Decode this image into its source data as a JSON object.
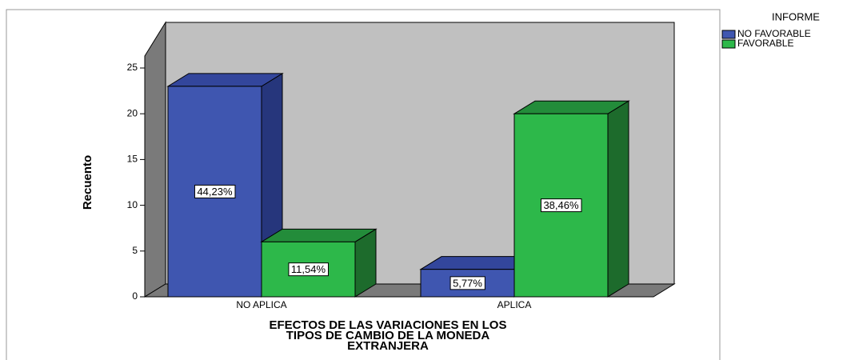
{
  "chart_data": {
    "type": "bar3d",
    "xlabel": [
      "EFECTOS DE LAS VARIACIONES EN LOS",
      "TIPOS DE CAMBIO DE LA MONEDA",
      "EXTRANJERA"
    ],
    "ylabel": "Recuento",
    "categories": [
      "NO APLICA",
      "APLICA"
    ],
    "legend_title": "INFORME",
    "series": [
      {
        "name": "NO FAVORABLE",
        "color": "#3f56b0",
        "side_color": "#26367c",
        "top_color": "#33469c",
        "values": [
          23,
          3
        ],
        "labels": [
          "44,23%",
          "5,77%"
        ]
      },
      {
        "name": "FAVORABLE",
        "color": "#2db84a",
        "side_color": "#1d6b2c",
        "top_color": "#238c3a",
        "values": [
          6,
          20
        ],
        "labels": [
          "11,54%",
          "38,46%"
        ]
      }
    ],
    "ylim": [
      0,
      25
    ],
    "yticks": [
      0,
      5,
      10,
      15,
      20,
      25
    ],
    "legend": "right"
  }
}
